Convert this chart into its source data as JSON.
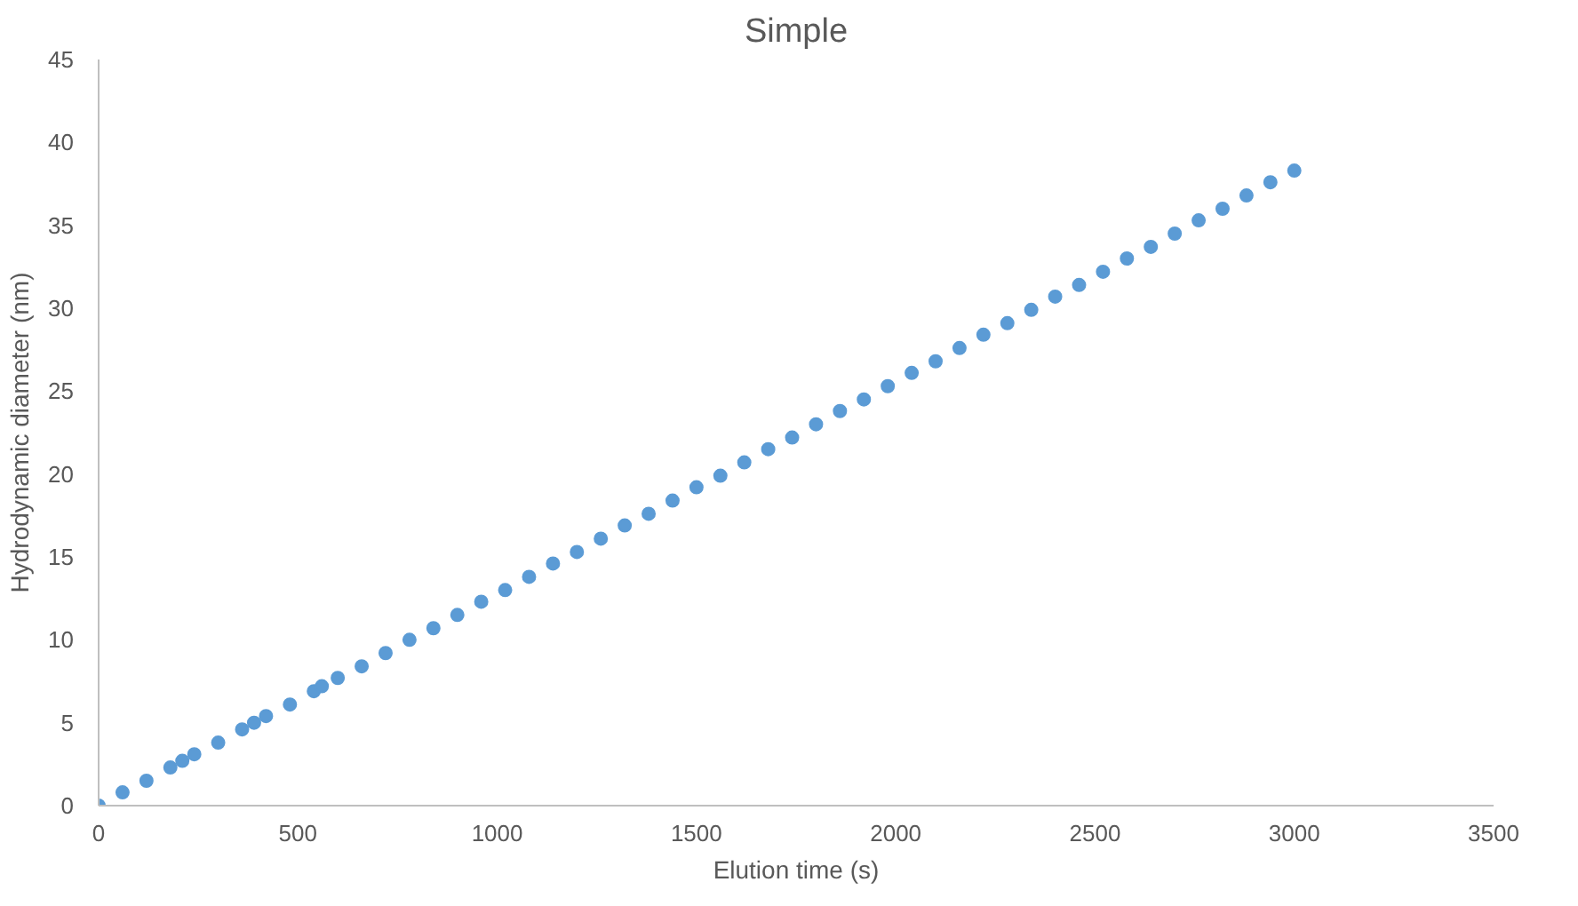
{
  "chart_data": {
    "type": "scatter",
    "title": "Simple",
    "xlabel": "Elution time (s)",
    "ylabel": "Hydrodynamic diameter (nm)",
    "x": [
      0,
      60,
      120,
      180,
      210,
      240,
      300,
      360,
      390,
      420,
      480,
      540,
      560,
      600,
      660,
      720,
      780,
      840,
      900,
      960,
      1020,
      1080,
      1140,
      1200,
      1260,
      1320,
      1380,
      1440,
      1500,
      1560,
      1620,
      1680,
      1740,
      1800,
      1860,
      1920,
      1980,
      2040,
      2100,
      2160,
      2220,
      2280,
      2340,
      2400,
      2460,
      2520,
      2580,
      2640,
      2700,
      2760,
      2820,
      2880,
      2940,
      3000
    ],
    "values": [
      0,
      0.8,
      1.5,
      2.3,
      2.7,
      3.1,
      3.8,
      4.6,
      5.0,
      5.4,
      6.1,
      6.9,
      7.2,
      7.7,
      8.4,
      9.2,
      10.0,
      10.7,
      11.5,
      12.3,
      13.0,
      13.8,
      14.6,
      15.3,
      16.1,
      16.9,
      17.6,
      18.4,
      19.2,
      19.9,
      20.7,
      21.5,
      22.2,
      23.0,
      23.8,
      24.5,
      25.3,
      26.1,
      26.8,
      27.6,
      28.4,
      29.1,
      29.9,
      30.7,
      31.4,
      32.2,
      33.0,
      33.7,
      34.5,
      35.3,
      36.0,
      36.8,
      37.6,
      38.3
    ],
    "color": "#5b9bd5",
    "marker": "circle",
    "xlim": [
      0,
      3500
    ],
    "xticks": [
      0,
      500,
      1000,
      1500,
      2000,
      2500,
      3000,
      3500
    ],
    "ylim": [
      0,
      45
    ],
    "yticks": [
      0,
      5,
      10,
      15,
      20,
      25,
      30,
      35,
      40,
      45
    ],
    "grid": false
  }
}
